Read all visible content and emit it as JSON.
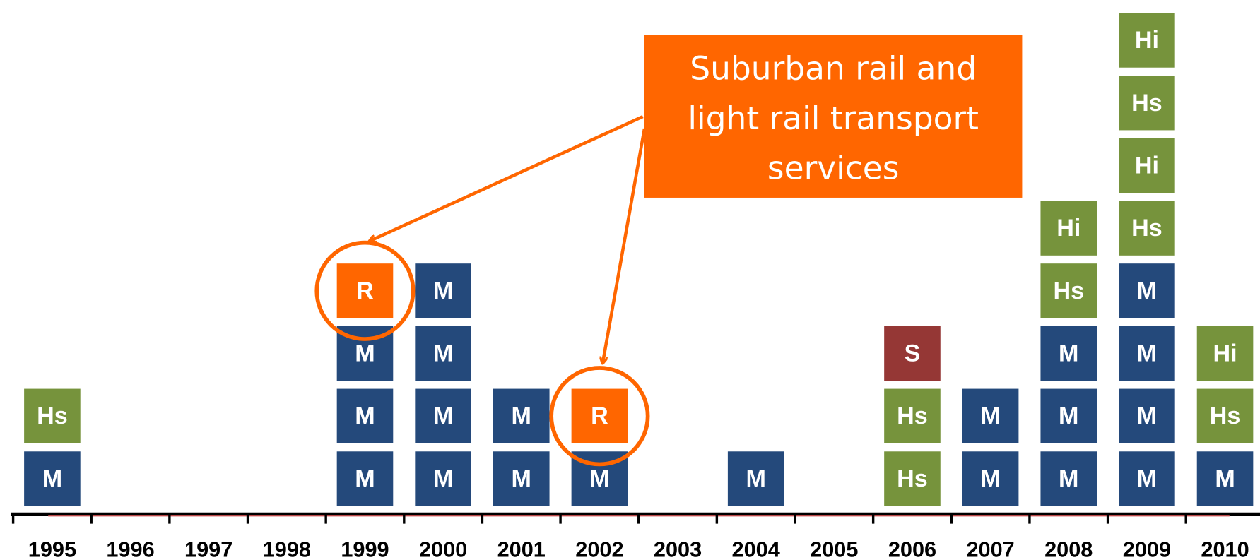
{
  "callout": {
    "lines": [
      "Suburban rail and",
      "light rail transport",
      "services"
    ]
  },
  "colors": {
    "M": "#24497b",
    "Hs": "#76933c",
    "Hi": "#76933c",
    "R": "#ff6600",
    "S": "#953735"
  },
  "timeline": [
    {
      "year": "1995",
      "blocks": [
        "M",
        "Hs"
      ]
    },
    {
      "year": "1996",
      "blocks": []
    },
    {
      "year": "1997",
      "blocks": []
    },
    {
      "year": "1998",
      "blocks": []
    },
    {
      "year": "1999",
      "blocks": [
        "M",
        "M",
        "M",
        "R"
      ]
    },
    {
      "year": "2000",
      "blocks": [
        "M",
        "M",
        "M",
        "M"
      ]
    },
    {
      "year": "2001",
      "blocks": [
        "M",
        "M"
      ]
    },
    {
      "year": "2002",
      "blocks": [
        "M",
        "R"
      ]
    },
    {
      "year": "2003",
      "blocks": []
    },
    {
      "year": "2004",
      "blocks": [
        "M"
      ]
    },
    {
      "year": "2005",
      "blocks": []
    },
    {
      "year": "2006",
      "blocks": [
        "Hs",
        "Hs",
        "S"
      ]
    },
    {
      "year": "2007",
      "blocks": [
        "M",
        "M"
      ]
    },
    {
      "year": "2008",
      "blocks": [
        "M",
        "M",
        "M",
        "Hs",
        "Hi"
      ]
    },
    {
      "year": "2009",
      "blocks": [
        "M",
        "M",
        "M",
        "M",
        "Hs",
        "Hi",
        "Hs",
        "Hi"
      ]
    },
    {
      "year": "2010",
      "blocks": [
        "M",
        "Hs",
        "Hi"
      ]
    }
  ]
}
